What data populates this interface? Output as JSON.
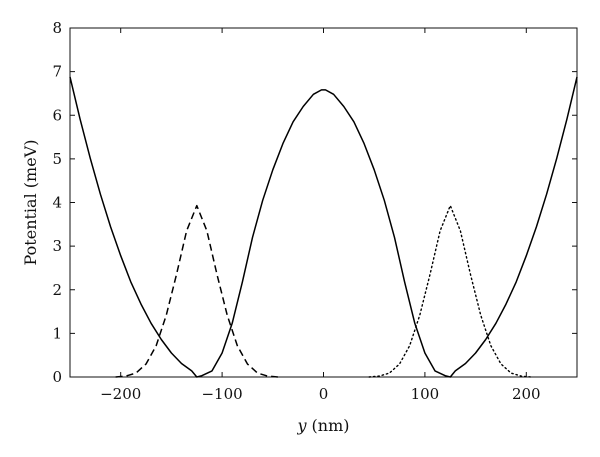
{
  "chart_data": {
    "type": "line",
    "xlabel_var": "y",
    "xlabel_unit": "(nm)",
    "ylabel": "Potential (meV)",
    "xlim": [
      -250,
      250
    ],
    "ylim": [
      0,
      8
    ],
    "x_ticks": [
      -200,
      -100,
      0,
      100,
      200
    ],
    "x_tick_labels": [
      "−200",
      "−100",
      "0",
      "100",
      "200"
    ],
    "y_ticks": [
      0,
      1,
      2,
      3,
      4,
      5,
      6,
      7,
      8
    ],
    "grid": false,
    "legend": "none",
    "series": [
      {
        "style": "solid",
        "x": [
          -250,
          -240,
          -230,
          -220,
          -210,
          -200,
          -190,
          -180,
          -170,
          -160,
          -150,
          -140,
          -130,
          -125,
          -120,
          -110,
          -100,
          -90,
          -80,
          -70,
          -60,
          -50,
          -40,
          -30,
          -20,
          -10,
          -2,
          2,
          10,
          20,
          30,
          40,
          50,
          60,
          70,
          80,
          90,
          100,
          110,
          120,
          125,
          130,
          140,
          150,
          160,
          170,
          180,
          190,
          200,
          210,
          220,
          230,
          240,
          250
        ],
        "y": [
          6.88,
          5.91,
          5.01,
          4.19,
          3.44,
          2.78,
          2.18,
          1.67,
          1.23,
          0.86,
          0.55,
          0.31,
          0.14,
          0.0,
          0.03,
          0.14,
          0.55,
          1.23,
          2.18,
          3.2,
          4.05,
          4.75,
          5.35,
          5.85,
          6.2,
          6.48,
          6.58,
          6.58,
          6.48,
          6.2,
          5.85,
          5.35,
          4.75,
          4.05,
          3.2,
          2.18,
          1.23,
          0.55,
          0.14,
          0.03,
          0.0,
          0.14,
          0.31,
          0.55,
          0.86,
          1.23,
          1.67,
          2.18,
          2.78,
          3.44,
          4.19,
          5.01,
          5.91,
          6.88
        ]
      },
      {
        "style": "dashed",
        "x": [
          -205,
          -195,
          -185,
          -175,
          -165,
          -155,
          -145,
          -135,
          -125,
          -115,
          -105,
          -95,
          -85,
          -75,
          -65,
          -55,
          -45
        ],
        "y": [
          0.0,
          0.02,
          0.09,
          0.3,
          0.72,
          1.42,
          2.35,
          3.35,
          3.93,
          3.35,
          2.35,
          1.42,
          0.72,
          0.3,
          0.09,
          0.02,
          0.0
        ]
      },
      {
        "style": "dotted",
        "x": [
          45,
          55,
          65,
          75,
          85,
          95,
          105,
          115,
          125,
          135,
          145,
          155,
          165,
          175,
          185,
          195,
          205
        ],
        "y": [
          0.0,
          0.02,
          0.09,
          0.3,
          0.72,
          1.42,
          2.35,
          3.35,
          3.93,
          3.35,
          2.35,
          1.42,
          0.72,
          0.3,
          0.09,
          0.02,
          0.0
        ]
      }
    ]
  }
}
